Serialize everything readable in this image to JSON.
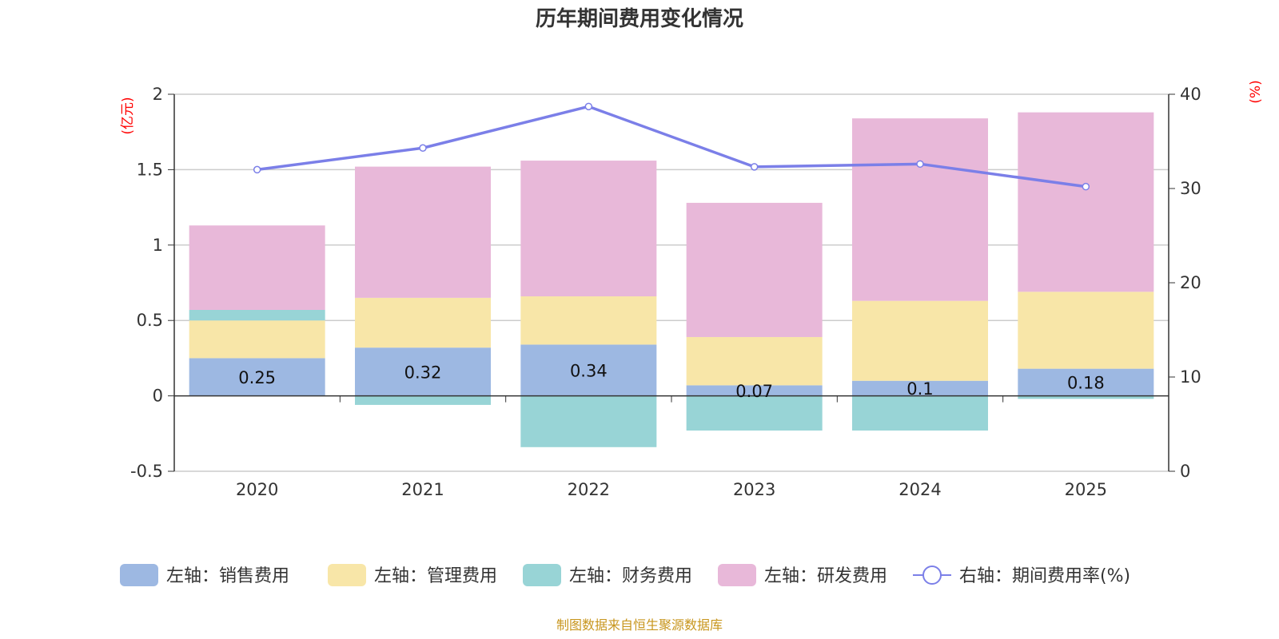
{
  "chart_data": {
    "type": "bar",
    "title": "历年期间费用变化情况",
    "categories": [
      "2020",
      "2021",
      "2022",
      "2023",
      "2024",
      "2025"
    ],
    "series": [
      {
        "name": "左轴：销售费用",
        "axis": "left",
        "color": "#9db8e2",
        "values": [
          0.25,
          0.32,
          0.34,
          0.07,
          0.1,
          0.18
        ],
        "labels": [
          "0.25",
          "0.32",
          "0.34",
          "0.07",
          "0.1",
          "0.18"
        ]
      },
      {
        "name": "左轴：管理费用",
        "axis": "left",
        "color": "#f8e6a8",
        "values": [
          0.25,
          0.33,
          0.32,
          0.32,
          0.53,
          0.51
        ]
      },
      {
        "name": "左轴：财务费用",
        "axis": "left",
        "color": "#98d4d6",
        "values": [
          0.07,
          -0.06,
          -0.34,
          -0.23,
          -0.23,
          -0.02
        ]
      },
      {
        "name": "左轴：研发费用",
        "axis": "left",
        "color": "#e8b8d9",
        "values": [
          0.56,
          0.87,
          0.9,
          0.89,
          1.21,
          1.19
        ]
      },
      {
        "name": "右轴：期间费用率(%)",
        "axis": "right",
        "type": "line",
        "color": "#7b7fe8",
        "values": [
          32,
          34.3,
          38.7,
          32.3,
          32.6,
          30.2
        ]
      }
    ],
    "left_axis": {
      "unit": "(亿元)",
      "ylim": [
        -0.5,
        2
      ],
      "ticks": [
        "-0.5",
        "0",
        "0.5",
        "1",
        "1.5",
        "2"
      ]
    },
    "right_axis": {
      "unit": "(%)",
      "ylim": [
        0,
        40
      ],
      "ticks": [
        "0",
        "10",
        "20",
        "30",
        "40"
      ]
    },
    "grid": true,
    "legend_position": "bottom",
    "source": "制图数据来自恒生聚源数据库"
  }
}
